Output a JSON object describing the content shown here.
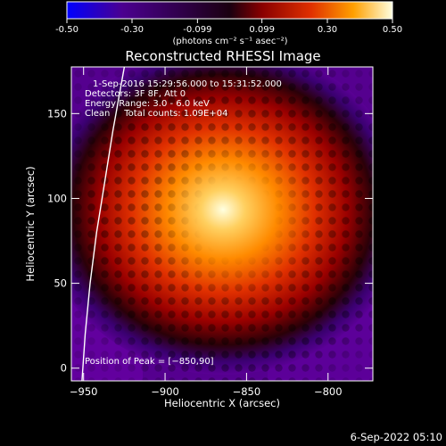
{
  "chart_data": {
    "type": "heatmap",
    "title": "Reconstructed RHESSI Image",
    "colorbar": {
      "min": -0.5,
      "max": 0.5,
      "ticks": [
        "-0.50",
        "-0.30",
        "-0.099",
        "0.099",
        "0.30",
        "0.50"
      ],
      "tick_values": [
        -0.5,
        -0.3,
        -0.099,
        0.099,
        0.3,
        0.5
      ],
      "unit_label": "(photons cm⁻² s⁻¹ asec⁻²)",
      "colormap": [
        "#0000ff",
        "#4b0090",
        "#1a0010",
        "#8a0000",
        "#e03000",
        "#ffa000",
        "#ffffe0"
      ]
    },
    "x_axis": {
      "label": "Heliocentric X (arcsec)",
      "range": [
        -957.5,
        -772.5
      ],
      "ticks": [
        -950,
        -900,
        -850,
        -800
      ],
      "tick_labels": [
        "−950",
        "−900",
        "−850",
        "−800"
      ]
    },
    "y_axis": {
      "label": "Heliocentric Y (arcsec)",
      "range": [
        -7.5,
        177.5
      ],
      "ticks": [
        0,
        50,
        100,
        150
      ],
      "tick_labels": [
        "0",
        "50",
        "100",
        "150"
      ]
    },
    "peak": {
      "x": -850,
      "y": 90
    },
    "info_lines": [
      "1-Sep-2016 15:29:56.000 to 15:31:52.000",
      "Detectors: 3F 8F, Att 0",
      "Energy Range: 3.0 - 6.0 keV",
      "Clean     Total counts: 1.09E+04"
    ],
    "peak_label": "Position of Peak = [−850,90]",
    "limb_curve": [
      {
        "x": -951,
        "y": -7.5
      },
      {
        "x": -949,
        "y": 20
      },
      {
        "x": -946,
        "y": 50
      },
      {
        "x": -942,
        "y": 80
      },
      {
        "x": -937,
        "y": 110
      },
      {
        "x": -932,
        "y": 140
      },
      {
        "x": -925,
        "y": 177.5
      }
    ]
  },
  "timestamp": "6-Sep-2022 05:10"
}
